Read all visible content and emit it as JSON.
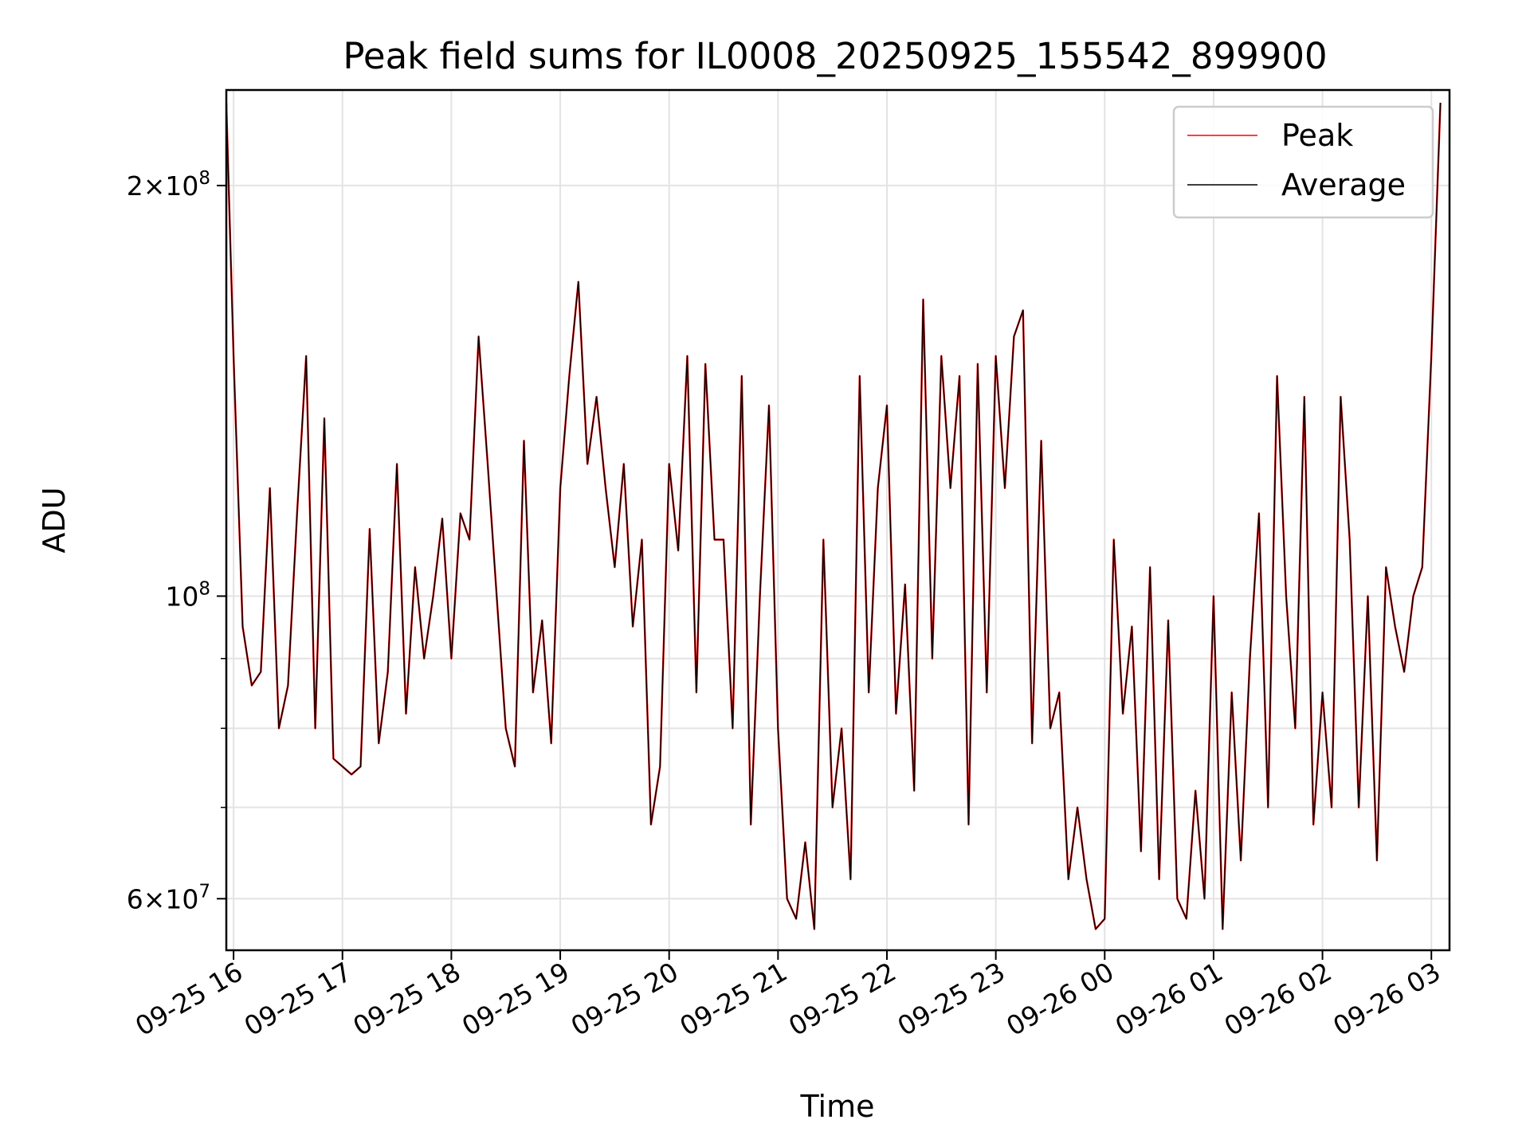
{
  "chart_data": {
    "type": "line",
    "title": "Peak field sums for IL0008_20250925_155542_899900",
    "xlabel": "Time",
    "ylabel": "ADU",
    "y_scale": "log",
    "ylim": [
      55000000,
      235000000
    ],
    "xlim": [
      "2025-09-25 15:56",
      "2025-09-26 03:10"
    ],
    "grid": true,
    "legend_position": "top-right",
    "x_ticks": [
      {
        "t": "2025-09-25 16:00",
        "label": "09-25 16"
      },
      {
        "t": "2025-09-25 17:00",
        "label": "09-25 17"
      },
      {
        "t": "2025-09-25 18:00",
        "label": "09-25 18"
      },
      {
        "t": "2025-09-25 19:00",
        "label": "09-25 19"
      },
      {
        "t": "2025-09-25 20:00",
        "label": "09-25 20"
      },
      {
        "t": "2025-09-25 21:00",
        "label": "09-25 21"
      },
      {
        "t": "2025-09-25 22:00",
        "label": "09-25 22"
      },
      {
        "t": "2025-09-25 23:00",
        "label": "09-25 23"
      },
      {
        "t": "2025-09-26 00:00",
        "label": "09-26 00"
      },
      {
        "t": "2025-09-26 01:00",
        "label": "09-26 01"
      },
      {
        "t": "2025-09-26 02:00",
        "label": "09-26 02"
      },
      {
        "t": "2025-09-26 03:00",
        "label": "09-26 03"
      }
    ],
    "y_major_ticks": [
      {
        "value": 60000000,
        "mantissa": "6",
        "exponent": "7"
      },
      {
        "value": 100000000,
        "mantissa": "",
        "exponent": "8"
      },
      {
        "value": 200000000,
        "mantissa": "2",
        "exponent": "8"
      }
    ],
    "y_minor_ticks": [
      70000000,
      80000000,
      90000000
    ],
    "x": [
      "2025-09-25 15:56",
      "2025-09-25 16:00",
      "2025-09-25 16:05",
      "2025-09-25 16:10",
      "2025-09-25 16:15",
      "2025-09-25 16:20",
      "2025-09-25 16:25",
      "2025-09-25 16:30",
      "2025-09-25 16:35",
      "2025-09-25 16:40",
      "2025-09-25 16:45",
      "2025-09-25 16:50",
      "2025-09-25 16:55",
      "2025-09-25 17:00",
      "2025-09-25 17:05",
      "2025-09-25 17:10",
      "2025-09-25 17:15",
      "2025-09-25 17:20",
      "2025-09-25 17:25",
      "2025-09-25 17:30",
      "2025-09-25 17:35",
      "2025-09-25 17:40",
      "2025-09-25 17:45",
      "2025-09-25 17:50",
      "2025-09-25 17:55",
      "2025-09-25 18:00",
      "2025-09-25 18:05",
      "2025-09-25 18:10",
      "2025-09-25 18:15",
      "2025-09-25 18:20",
      "2025-09-25 18:25",
      "2025-09-25 18:30",
      "2025-09-25 18:35",
      "2025-09-25 18:40",
      "2025-09-25 18:45",
      "2025-09-25 18:50",
      "2025-09-25 18:55",
      "2025-09-25 19:00",
      "2025-09-25 19:05",
      "2025-09-25 19:10",
      "2025-09-25 19:15",
      "2025-09-25 19:20",
      "2025-09-25 19:25",
      "2025-09-25 19:30",
      "2025-09-25 19:35",
      "2025-09-25 19:40",
      "2025-09-25 19:45",
      "2025-09-25 19:50",
      "2025-09-25 19:55",
      "2025-09-25 20:00",
      "2025-09-25 20:05",
      "2025-09-25 20:10",
      "2025-09-25 20:15",
      "2025-09-25 20:20",
      "2025-09-25 20:25",
      "2025-09-25 20:30",
      "2025-09-25 20:35",
      "2025-09-25 20:40",
      "2025-09-25 20:45",
      "2025-09-25 20:50",
      "2025-09-25 20:55",
      "2025-09-25 21:00",
      "2025-09-25 21:05",
      "2025-09-25 21:10",
      "2025-09-25 21:15",
      "2025-09-25 21:20",
      "2025-09-25 21:25",
      "2025-09-25 21:30",
      "2025-09-25 21:35",
      "2025-09-25 21:40",
      "2025-09-25 21:45",
      "2025-09-25 21:50",
      "2025-09-25 21:55",
      "2025-09-25 22:00",
      "2025-09-25 22:05",
      "2025-09-25 22:10",
      "2025-09-25 22:15",
      "2025-09-25 22:20",
      "2025-09-25 22:25",
      "2025-09-25 22:30",
      "2025-09-25 22:35",
      "2025-09-25 22:40",
      "2025-09-25 22:45",
      "2025-09-25 22:50",
      "2025-09-25 22:55",
      "2025-09-25 23:00",
      "2025-09-25 23:05",
      "2025-09-25 23:10",
      "2025-09-25 23:15",
      "2025-09-25 23:20",
      "2025-09-25 23:25",
      "2025-09-25 23:30",
      "2025-09-25 23:35",
      "2025-09-25 23:40",
      "2025-09-25 23:45",
      "2025-09-25 23:50",
      "2025-09-25 23:55",
      "2025-09-26 00:00",
      "2025-09-26 00:05",
      "2025-09-26 00:10",
      "2025-09-26 00:15",
      "2025-09-26 00:20",
      "2025-09-26 00:25",
      "2025-09-26 00:30",
      "2025-09-26 00:35",
      "2025-09-26 00:40",
      "2025-09-26 00:45",
      "2025-09-26 00:50",
      "2025-09-26 00:55",
      "2025-09-26 01:00",
      "2025-09-26 01:05",
      "2025-09-26 01:10",
      "2025-09-26 01:15",
      "2025-09-26 01:20",
      "2025-09-26 01:25",
      "2025-09-26 01:30",
      "2025-09-26 01:35",
      "2025-09-26 01:40",
      "2025-09-26 01:45",
      "2025-09-26 01:50",
      "2025-09-26 01:55",
      "2025-09-26 02:00",
      "2025-09-26 02:05",
      "2025-09-26 02:10",
      "2025-09-26 02:15",
      "2025-09-26 02:20",
      "2025-09-26 02:25",
      "2025-09-26 02:30",
      "2025-09-26 02:35",
      "2025-09-26 02:40",
      "2025-09-26 02:45",
      "2025-09-26 02:50",
      "2025-09-26 02:55",
      "2025-09-26 03:00",
      "2025-09-26 03:05"
    ],
    "series": [
      {
        "name": "Peak",
        "color": "#ff0000",
        "values": [
          230000000,
          150000000,
          95000000,
          86000000,
          88000000,
          120000000,
          80000000,
          86000000,
          115000000,
          150000000,
          80000000,
          135000000,
          76000000,
          75000000,
          74000000,
          75000000,
          112000000,
          78000000,
          88000000,
          125000000,
          82000000,
          105000000,
          90000000,
          100000000,
          114000000,
          90000000,
          115000000,
          110000000,
          155000000,
          125000000,
          100000000,
          80000000,
          75000000,
          130000000,
          85000000,
          96000000,
          78000000,
          120000000,
          145000000,
          170000000,
          125000000,
          140000000,
          120000000,
          105000000,
          125000000,
          95000000,
          110000000,
          68000000,
          75000000,
          125000000,
          108000000,
          150000000,
          85000000,
          148000000,
          110000000,
          110000000,
          80000000,
          145000000,
          68000000,
          100000000,
          138000000,
          80000000,
          60000000,
          58000000,
          66000000,
          57000000,
          110000000,
          70000000,
          80000000,
          62000000,
          145000000,
          85000000,
          120000000,
          138000000,
          82000000,
          102000000,
          72000000,
          165000000,
          90000000,
          150000000,
          120000000,
          145000000,
          68000000,
          148000000,
          85000000,
          150000000,
          120000000,
          155000000,
          162000000,
          78000000,
          130000000,
          80000000,
          85000000,
          62000000,
          70000000,
          62000000,
          57000000,
          58000000,
          110000000,
          82000000,
          95000000,
          65000000,
          105000000,
          62000000,
          96000000,
          60000000,
          58000000,
          72000000,
          60000000,
          100000000,
          57000000,
          85000000,
          64000000,
          90000000,
          115000000,
          70000000,
          145000000,
          100000000,
          80000000,
          140000000,
          68000000,
          85000000,
          70000000,
          140000000,
          110000000,
          70000000,
          100000000,
          64000000,
          105000000,
          95000000,
          88000000,
          100000000,
          105000000,
          150000000,
          230000000
        ]
      },
      {
        "name": "Average",
        "color": "#000000",
        "values": [
          230000000,
          150000000,
          95000000,
          86000000,
          88000000,
          120000000,
          80000000,
          86000000,
          115000000,
          150000000,
          80000000,
          135000000,
          76000000,
          75000000,
          74000000,
          75000000,
          112000000,
          78000000,
          88000000,
          125000000,
          82000000,
          105000000,
          90000000,
          100000000,
          114000000,
          90000000,
          115000000,
          110000000,
          155000000,
          125000000,
          100000000,
          80000000,
          75000000,
          130000000,
          85000000,
          96000000,
          78000000,
          120000000,
          145000000,
          170000000,
          125000000,
          140000000,
          120000000,
          105000000,
          125000000,
          95000000,
          110000000,
          68000000,
          75000000,
          125000000,
          108000000,
          150000000,
          85000000,
          148000000,
          110000000,
          110000000,
          80000000,
          145000000,
          68000000,
          100000000,
          138000000,
          80000000,
          60000000,
          58000000,
          66000000,
          57000000,
          110000000,
          70000000,
          80000000,
          62000000,
          145000000,
          85000000,
          120000000,
          138000000,
          82000000,
          102000000,
          72000000,
          165000000,
          90000000,
          150000000,
          120000000,
          145000000,
          68000000,
          148000000,
          85000000,
          150000000,
          120000000,
          155000000,
          162000000,
          78000000,
          130000000,
          80000000,
          85000000,
          62000000,
          70000000,
          62000000,
          57000000,
          58000000,
          110000000,
          82000000,
          95000000,
          65000000,
          105000000,
          62000000,
          96000000,
          60000000,
          58000000,
          72000000,
          60000000,
          100000000,
          57000000,
          85000000,
          64000000,
          90000000,
          115000000,
          70000000,
          145000000,
          100000000,
          80000000,
          140000000,
          68000000,
          85000000,
          70000000,
          140000000,
          110000000,
          70000000,
          100000000,
          64000000,
          105000000,
          95000000,
          88000000,
          100000000,
          105000000,
          150000000,
          230000000
        ]
      }
    ]
  }
}
